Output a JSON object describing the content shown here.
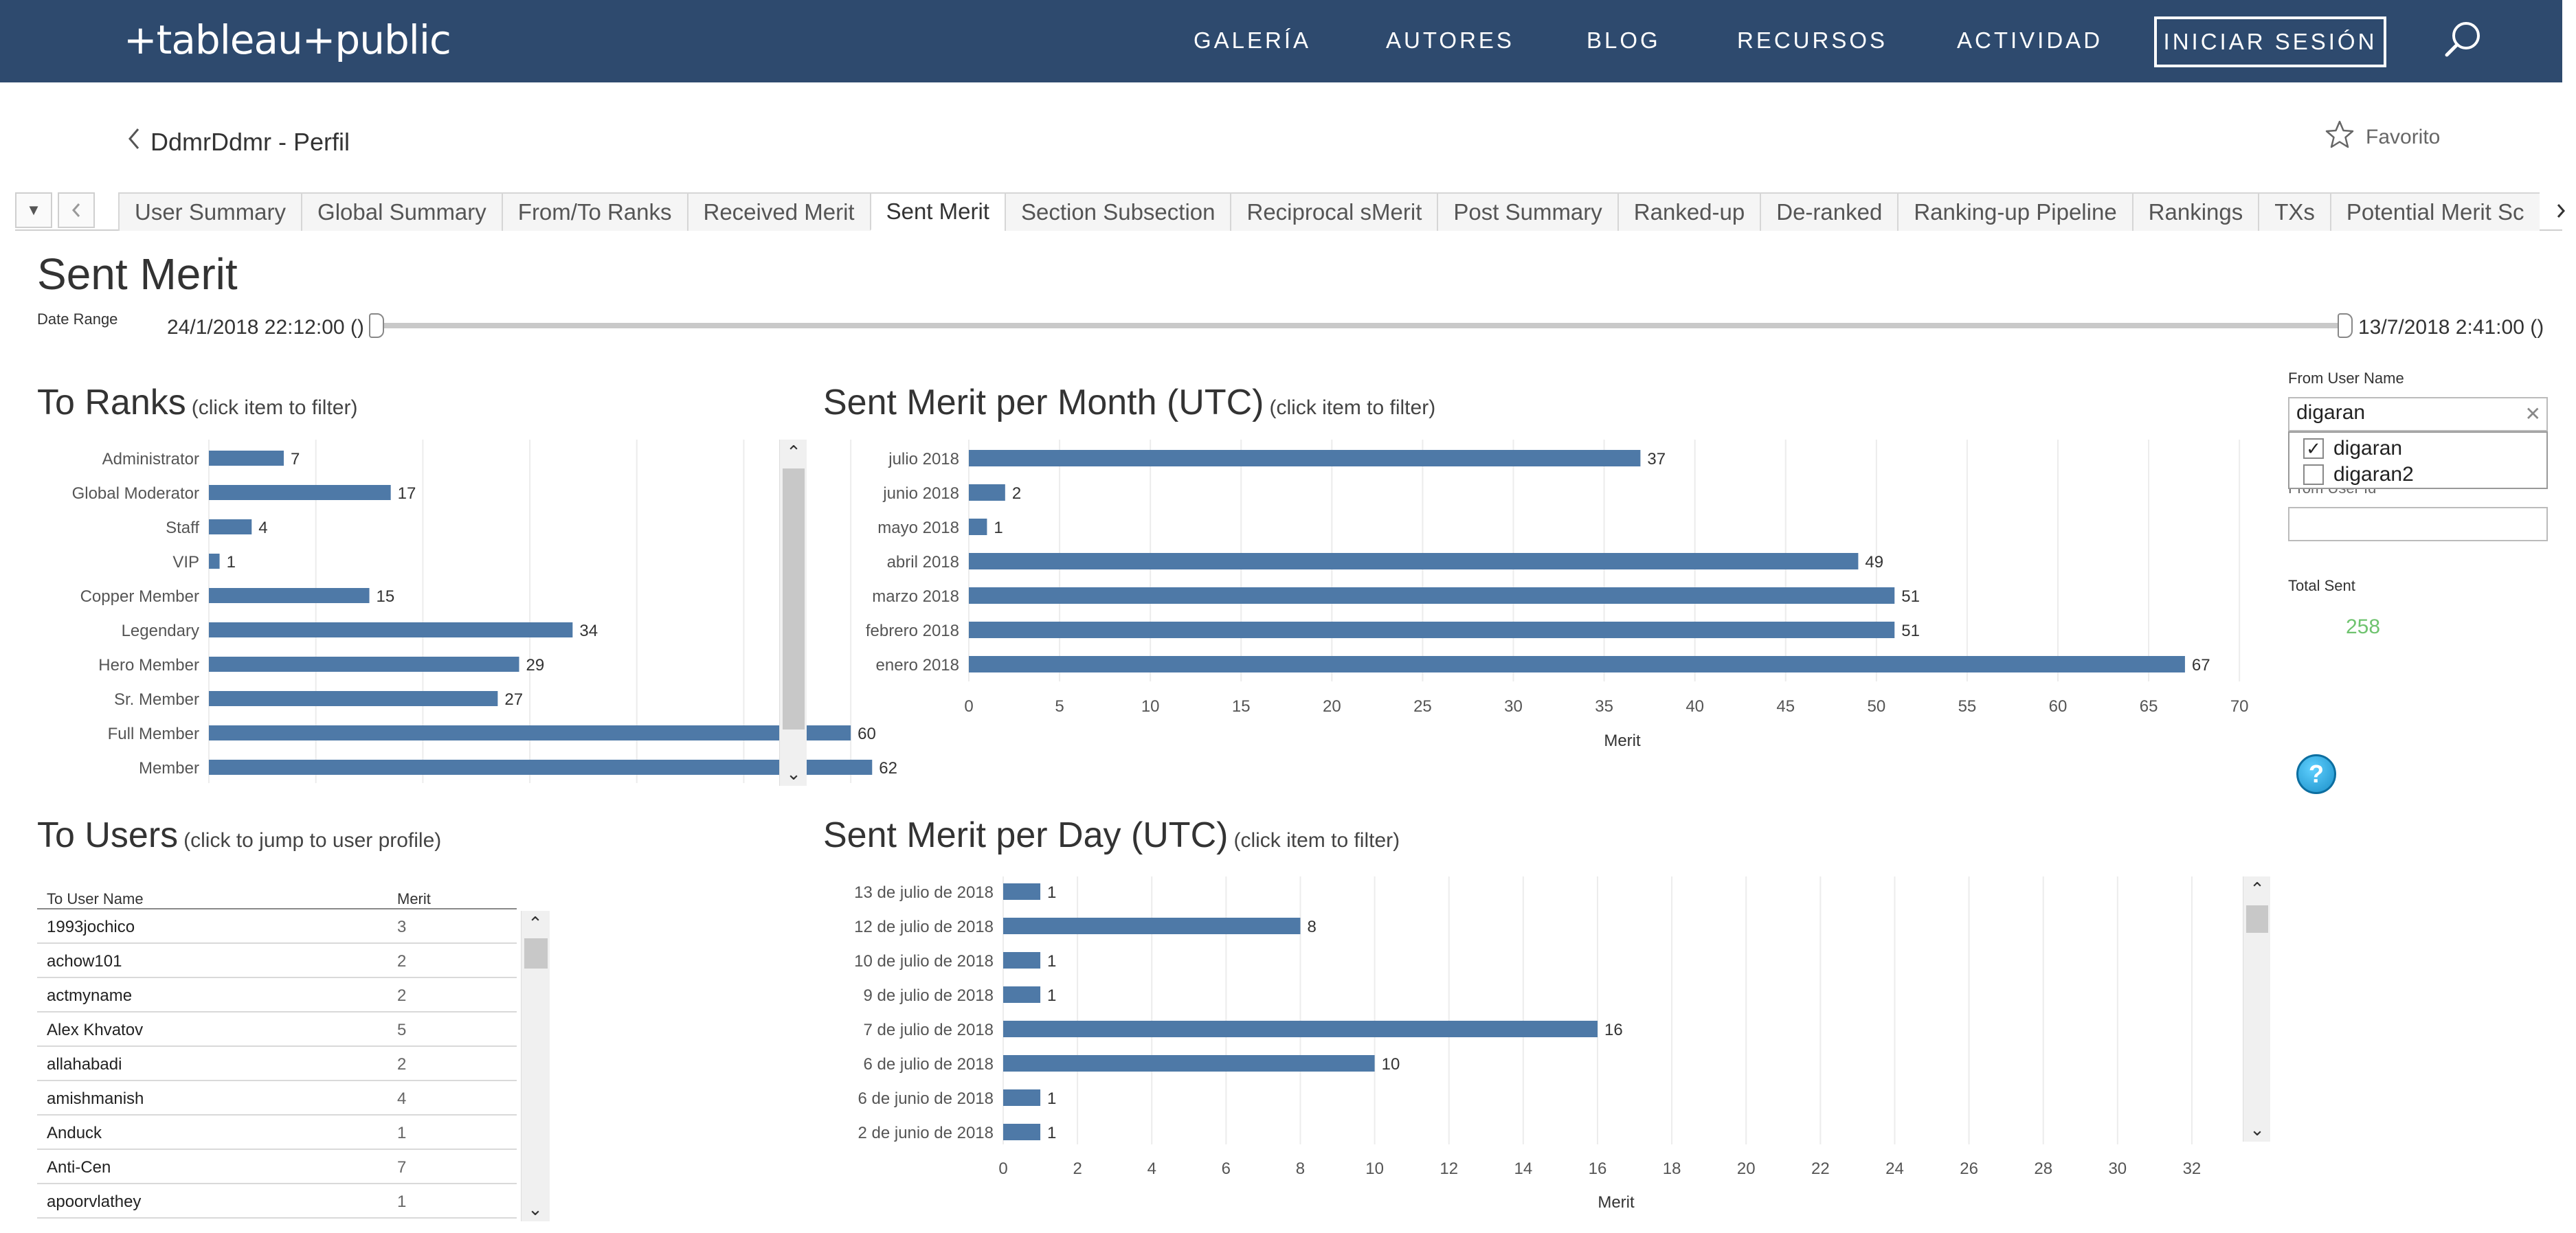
{
  "nav": {
    "logo": "+tableau+public",
    "links": [
      "GALERÍA",
      "AUTORES",
      "BLOG",
      "RECURSOS",
      "ACTIVIDAD"
    ],
    "signin": "INICIAR SESIÓN"
  },
  "profile": {
    "back_label": "DdmrDdmr - Perfil",
    "favorite": "Favorito"
  },
  "tabs": [
    "User Summary",
    "Global Summary",
    "From/To Ranks",
    "Received Merit",
    "Sent Merit",
    "Section Subsection",
    "Reciprocal sMerit",
    "Post Summary",
    "Ranked-up",
    "De-ranked",
    "Ranking-up Pipeline",
    "Rankings",
    "TXs",
    "Potential Merit Sc"
  ],
  "active_tab": "Sent Merit",
  "dashboard": {
    "title": "Sent Merit",
    "date_range_label": "Date Range",
    "date_start": "24/1/2018 22:12:00 ()",
    "date_end": "13/7/2018 2:41:00 ()"
  },
  "sections": {
    "to_ranks": {
      "title": "To Ranks",
      "hint": "(click item to filter)"
    },
    "per_month": {
      "title": "Sent Merit per Month (UTC)",
      "hint": "(click item to filter)"
    },
    "to_users": {
      "title": "To Users",
      "hint": "(click  to jump to user profile)"
    },
    "per_day": {
      "title": "Sent Merit per Day (UTC)",
      "hint": "(click item to filter)"
    }
  },
  "filters": {
    "from_user_label": "From User Name",
    "from_user_value": "digaran",
    "options": [
      {
        "label": "digaran",
        "checked": true
      },
      {
        "label": "digaran2",
        "checked": false
      }
    ],
    "from_user_id_label": "From User Id",
    "total_label": "Total Sent",
    "total_value": "258"
  },
  "users_table": {
    "headers": [
      "To User Name",
      "Merit"
    ],
    "rows": [
      [
        "1993jochico",
        "3"
      ],
      [
        "achow101",
        "2"
      ],
      [
        "actmyname",
        "2"
      ],
      [
        "Alex Khvatov",
        "5"
      ],
      [
        "allahabadi",
        "2"
      ],
      [
        "amishmanish",
        "4"
      ],
      [
        "Anduck",
        "1"
      ],
      [
        "Anti-Cen",
        "7"
      ],
      [
        "apoorvlathey",
        "1"
      ]
    ]
  },
  "chart_data": [
    {
      "type": "bar",
      "orientation": "horizontal",
      "title": "To Ranks",
      "categories": [
        "Administrator",
        "Global Moderator",
        "Staff",
        "VIP",
        "Copper Member",
        "Legendary",
        "Hero Member",
        "Sr. Member",
        "Full Member",
        "Member"
      ],
      "values": [
        7,
        17,
        4,
        1,
        15,
        34,
        29,
        27,
        60,
        62
      ],
      "xlim": [
        0,
        65
      ],
      "color": "#4e79a7"
    },
    {
      "type": "bar",
      "orientation": "horizontal",
      "title": "Sent Merit per Month (UTC)",
      "categories": [
        "julio 2018",
        "junio 2018",
        "mayo 2018",
        "abril 2018",
        "marzo 2018",
        "febrero 2018",
        "enero 2018"
      ],
      "values": [
        37,
        2,
        1,
        49,
        51,
        51,
        67
      ],
      "xlabel": "Merit",
      "xticks": [
        0,
        5,
        10,
        15,
        20,
        25,
        30,
        35,
        40,
        45,
        50,
        55,
        60,
        65,
        70
      ],
      "xlim": [
        0,
        72
      ],
      "color": "#4e79a7"
    },
    {
      "type": "bar",
      "orientation": "horizontal",
      "title": "Sent Merit per Day (UTC)",
      "categories": [
        "13 de julio de 2018",
        "12 de julio de 2018",
        "10 de julio de 2018",
        "9 de julio de 2018",
        "7 de julio de 2018",
        "6 de julio de 2018",
        "6 de junio de 2018",
        "2 de junio de 2018"
      ],
      "values": [
        1,
        8,
        1,
        1,
        16,
        10,
        1,
        1
      ],
      "xlabel": "Merit",
      "xticks": [
        0,
        2,
        4,
        6,
        8,
        10,
        12,
        14,
        16,
        18,
        20,
        22,
        24,
        26,
        28,
        30,
        32
      ],
      "xlim": [
        0,
        33
      ],
      "color": "#4e79a7"
    }
  ]
}
